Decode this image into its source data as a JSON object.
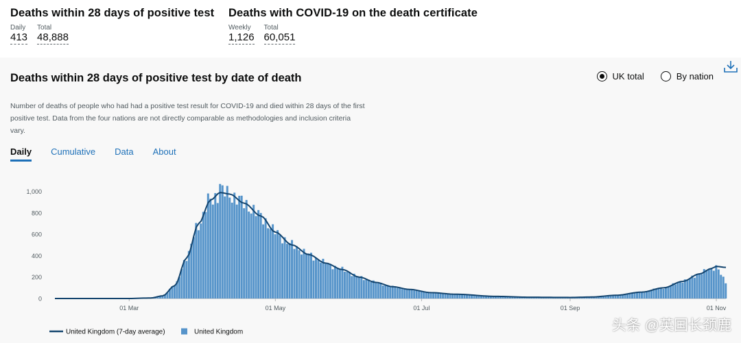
{
  "headlines": [
    {
      "title": "Deaths within 28 days of positive test",
      "metrics": [
        {
          "label": "Daily",
          "value": "413"
        },
        {
          "label": "Total",
          "value": "48,888"
        }
      ]
    },
    {
      "title": "Deaths with COVID-19 on the death certificate",
      "metrics": [
        {
          "label": "Weekly",
          "value": "1,126"
        },
        {
          "label": "Total",
          "value": "60,051"
        }
      ]
    }
  ],
  "card": {
    "title": "Deaths within 28 days of positive test by date of death",
    "description": "Number of deaths of people who had had a positive test result for COVID-19 and died within 28 days of the first positive test. Data from the four nations are not directly comparable as methodologies and inclusion criteria vary.",
    "radio": {
      "uk_total": "UK total",
      "by_nation": "By nation",
      "selected": "uk_total"
    },
    "download_icon": "download-icon",
    "tabs": [
      "Daily",
      "Cumulative",
      "Data",
      "About"
    ],
    "active_tab": 0
  },
  "watermark": "头条 @英国长颈鹿",
  "colors": {
    "bar": "#5694ca",
    "line": "#12436d",
    "accent": "#1d70b8"
  },
  "chart_data": {
    "type": "bar",
    "x_axis_type": "date",
    "start_date": "2020-01-30",
    "end_date": "2020-11-05",
    "x_ticks": [
      {
        "date": "2020-03-01",
        "label": "01 Mar"
      },
      {
        "date": "2020-05-01",
        "label": "01 May"
      },
      {
        "date": "2020-07-01",
        "label": "01 Jul"
      },
      {
        "date": "2020-09-01",
        "label": "01 Sep"
      },
      {
        "date": "2020-11-01",
        "label": "01 Nov"
      }
    ],
    "y_ticks": [
      {
        "value": 0,
        "label": "0"
      },
      {
        "value": 200,
        "label": "200"
      },
      {
        "value": 400,
        "label": "400"
      },
      {
        "value": 600,
        "label": "600"
      },
      {
        "value": 800,
        "label": "800"
      },
      {
        "value": 1000,
        "label": "1,000"
      }
    ],
    "ylim": [
      0,
      1100
    ],
    "legend_position": "bottom-left",
    "series": [
      {
        "name": "United Kingdom (7-day average)",
        "kind": "line",
        "color": "#12436d",
        "anchors": [
          [
            "2020-01-30",
            0
          ],
          [
            "2020-03-01",
            0
          ],
          [
            "2020-03-10",
            5
          ],
          [
            "2020-03-15",
            25
          ],
          [
            "2020-03-20",
            120
          ],
          [
            "2020-03-25",
            380
          ],
          [
            "2020-03-30",
            700
          ],
          [
            "2020-04-04",
            920
          ],
          [
            "2020-04-08",
            990
          ],
          [
            "2020-04-12",
            975
          ],
          [
            "2020-04-18",
            890
          ],
          [
            "2020-04-25",
            770
          ],
          [
            "2020-05-01",
            620
          ],
          [
            "2020-05-08",
            500
          ],
          [
            "2020-05-15",
            410
          ],
          [
            "2020-05-22",
            330
          ],
          [
            "2020-05-29",
            270
          ],
          [
            "2020-06-05",
            200
          ],
          [
            "2020-06-12",
            150
          ],
          [
            "2020-06-19",
            110
          ],
          [
            "2020-06-26",
            85
          ],
          [
            "2020-07-05",
            55
          ],
          [
            "2020-07-15",
            40
          ],
          [
            "2020-08-01",
            20
          ],
          [
            "2020-08-15",
            12
          ],
          [
            "2020-09-01",
            10
          ],
          [
            "2020-09-10",
            14
          ],
          [
            "2020-09-20",
            30
          ],
          [
            "2020-10-01",
            60
          ],
          [
            "2020-10-10",
            100
          ],
          [
            "2020-10-18",
            160
          ],
          [
            "2020-10-25",
            230
          ],
          [
            "2020-10-30",
            280
          ],
          [
            "2020-11-01",
            300
          ],
          [
            "2020-11-05",
            290
          ]
        ]
      },
      {
        "name": "United Kingdom",
        "kind": "bar",
        "color": "#5694ca",
        "peak_spike": [
          "2020-04-08",
          1070
        ]
      }
    ]
  }
}
